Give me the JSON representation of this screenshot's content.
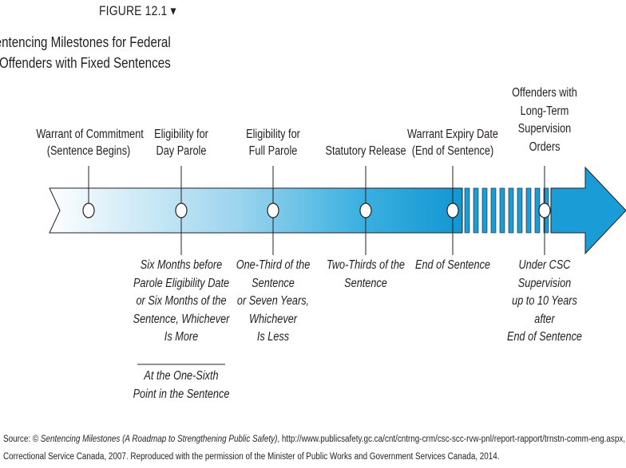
{
  "figure": {
    "label": "FIGURE 12.1 ▾",
    "title_lines": [
      "Sentencing Milestones for Federal",
      "Offenders with Fixed Sentences"
    ]
  },
  "milestones": [
    {
      "above": [
        "Warrant of Commitment",
        "(Sentence Begins)"
      ],
      "below": []
    },
    {
      "above": [
        "Eligibility for",
        "Day Parole"
      ],
      "below": [
        "Six Months before",
        "Parole Eligibility Date",
        "or Six Months of the",
        "Sentence, Whichever",
        "Is More"
      ],
      "below_alt": [
        "At the One-Sixth",
        "Point in the Sentence"
      ]
    },
    {
      "above": [
        "Eligibility for",
        "Full Parole"
      ],
      "below": [
        "One-Third of the",
        "Sentence",
        "or Seven Years,",
        "Whichever",
        "Is Less"
      ]
    },
    {
      "above": [
        "Statutory Release"
      ],
      "below": [
        "Two-Thirds of the",
        "Sentence"
      ]
    },
    {
      "above": [
        "Warrant Expiry Date",
        "(End of Sentence)"
      ],
      "below": [
        "End of Sentence"
      ]
    },
    {
      "above": [
        "Offenders with",
        "Long-Term",
        "Supervision",
        "Orders"
      ],
      "below": [
        "Under CSC",
        "Supervision",
        "up to 10 Years",
        "after",
        "End of Sentence"
      ]
    }
  ],
  "source": {
    "prefix": "Source: © ",
    "italic": "Sentencing Milestones (A Roadmap to Strengthening Public Safety)",
    "rest": ", http://www.publicsafety.gc.ca/cnt/cntrng-crm/csc-scc-rvw-pnl/report-rapport/trnstn-comm-eng.aspx,",
    "line2": "Correctional Service Canada, 2007. Reproduced with the permission of the Minister of Public Works and Government Services Canada, 2014."
  },
  "colors": {
    "arrow_light": "#e9f6fb",
    "arrow_dark": "#1aa1d8",
    "text": "#231f20"
  }
}
